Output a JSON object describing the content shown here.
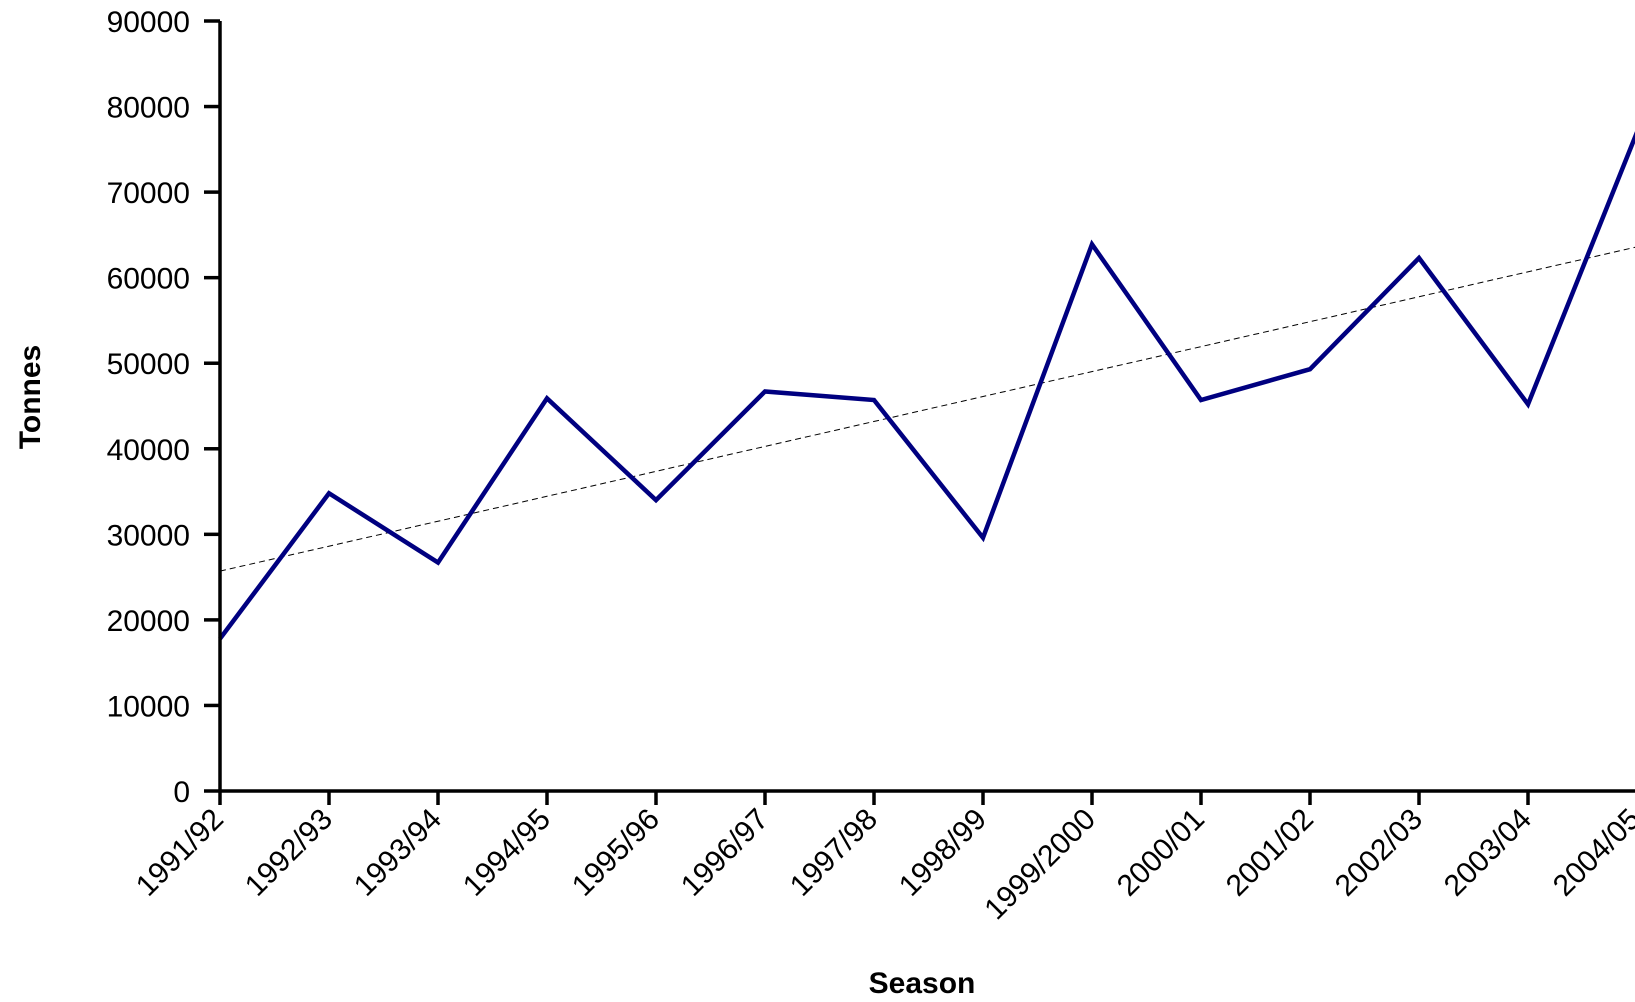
{
  "chart_data": {
    "type": "line",
    "title": "",
    "xlabel": "Season",
    "ylabel": "Tonnes",
    "ylim": [
      0,
      90000
    ],
    "yticks": [
      0,
      10000,
      20000,
      30000,
      40000,
      50000,
      60000,
      70000,
      80000,
      90000
    ],
    "categories": [
      "1991/92",
      "1992/93",
      "1993/94",
      "1994/95",
      "1995/96",
      "1996/97",
      "1997/98",
      "1998/99",
      "1999/2000",
      "2000/01",
      "2001/02",
      "2002/03",
      "2003/04",
      "2004/05"
    ],
    "series": [
      {
        "values": [
          17800,
          34800,
          26700,
          45900,
          34000,
          46700,
          45700,
          29600,
          63900,
          45700,
          49300,
          62300,
          45200,
          77000
        ],
        "color": "#000080"
      }
    ],
    "trendline": {
      "type": "linear",
      "values": [
        25700,
        63600
      ],
      "color": "#000000"
    },
    "grid": false,
    "legend": "none"
  }
}
